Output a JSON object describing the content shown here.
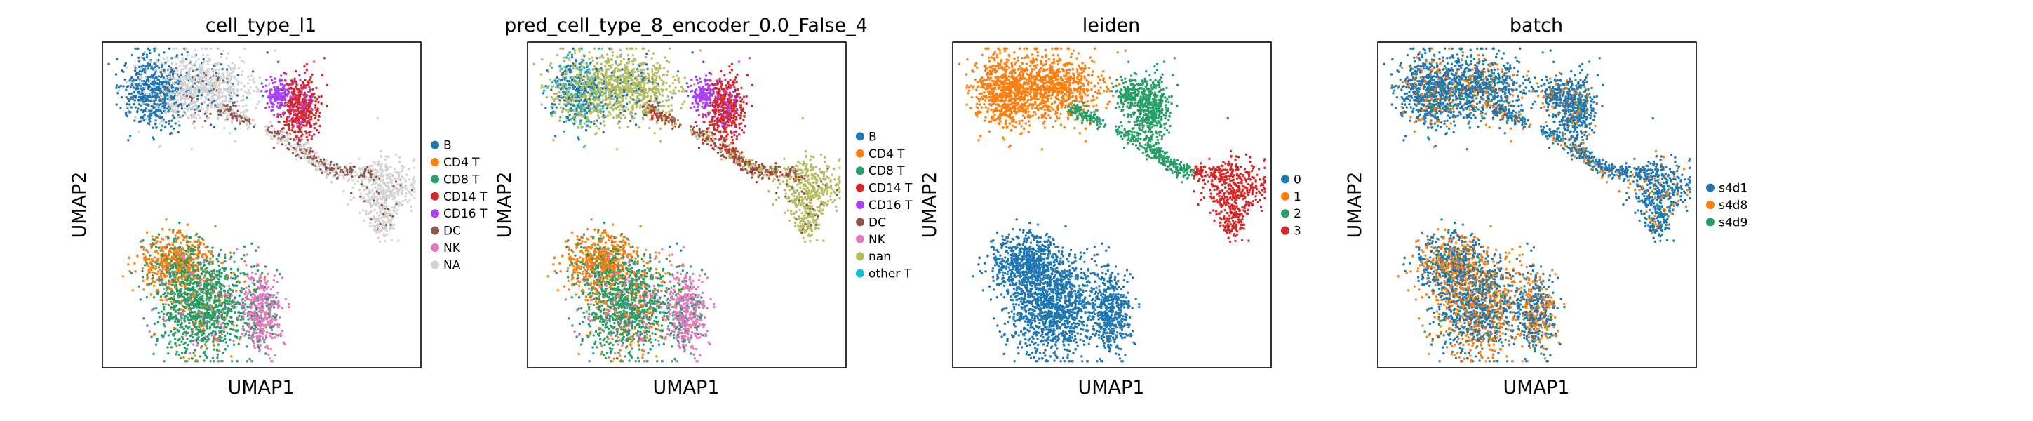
{
  "figure": {
    "type": "scatter",
    "panel_titles": [
      "cell_type_l1",
      "pred_cell_type_8_encoder_0.0_False_4",
      "leiden",
      "batch"
    ]
  },
  "chart_data": [
    {
      "type": "scatter",
      "title": "cell_type_l1",
      "xlabel": "UMAP1",
      "ylabel": "UMAP2",
      "grid": false,
      "ticks": false,
      "legend": "right",
      "series": [
        {
          "name": "B",
          "color": "#1f77b4"
        },
        {
          "name": "CD4 T",
          "color": "#ff7f0e"
        },
        {
          "name": "CD8 T",
          "color": "#279e68"
        },
        {
          "name": "CD14 T",
          "color": "#d62728"
        },
        {
          "name": "CD16 T",
          "color": "#aa40fc"
        },
        {
          "name": "DC",
          "color": "#8c564b"
        },
        {
          "name": "NK",
          "color": "#e377c2"
        },
        {
          "name": "NA",
          "color": "#d3d3d3"
        }
      ]
    },
    {
      "type": "scatter",
      "title": "pred_cell_type_8_encoder_0.0_False_4",
      "xlabel": "UMAP1",
      "ylabel": "UMAP2",
      "grid": false,
      "ticks": false,
      "legend": "right",
      "series": [
        {
          "name": "B",
          "color": "#1f77b4"
        },
        {
          "name": "CD4 T",
          "color": "#ff7f0e"
        },
        {
          "name": "CD8 T",
          "color": "#279e68"
        },
        {
          "name": "CD14 T",
          "color": "#d62728"
        },
        {
          "name": "CD16 T",
          "color": "#aa40fc"
        },
        {
          "name": "DC",
          "color": "#8c564b"
        },
        {
          "name": "NK",
          "color": "#e377c2"
        },
        {
          "name": "nan",
          "color": "#b5bd61"
        },
        {
          "name": "other T",
          "color": "#17becf"
        }
      ]
    },
    {
      "type": "scatter",
      "title": "leiden",
      "xlabel": "UMAP1",
      "ylabel": "UMAP2",
      "grid": false,
      "ticks": false,
      "legend": "right",
      "series": [
        {
          "name": "0",
          "color": "#1f77b4"
        },
        {
          "name": "1",
          "color": "#ff7f0e"
        },
        {
          "name": "2",
          "color": "#279e68"
        },
        {
          "name": "3",
          "color": "#d62728"
        }
      ]
    },
    {
      "type": "scatter",
      "title": "batch",
      "xlabel": "UMAP1",
      "ylabel": "UMAP2",
      "grid": false,
      "ticks": false,
      "legend": "right",
      "series": [
        {
          "name": "s4d1",
          "color": "#1f77b4"
        },
        {
          "name": "s4d8",
          "color": "#ff7f0e"
        },
        {
          "name": "s4d9",
          "color": "#279e68"
        }
      ]
    }
  ]
}
